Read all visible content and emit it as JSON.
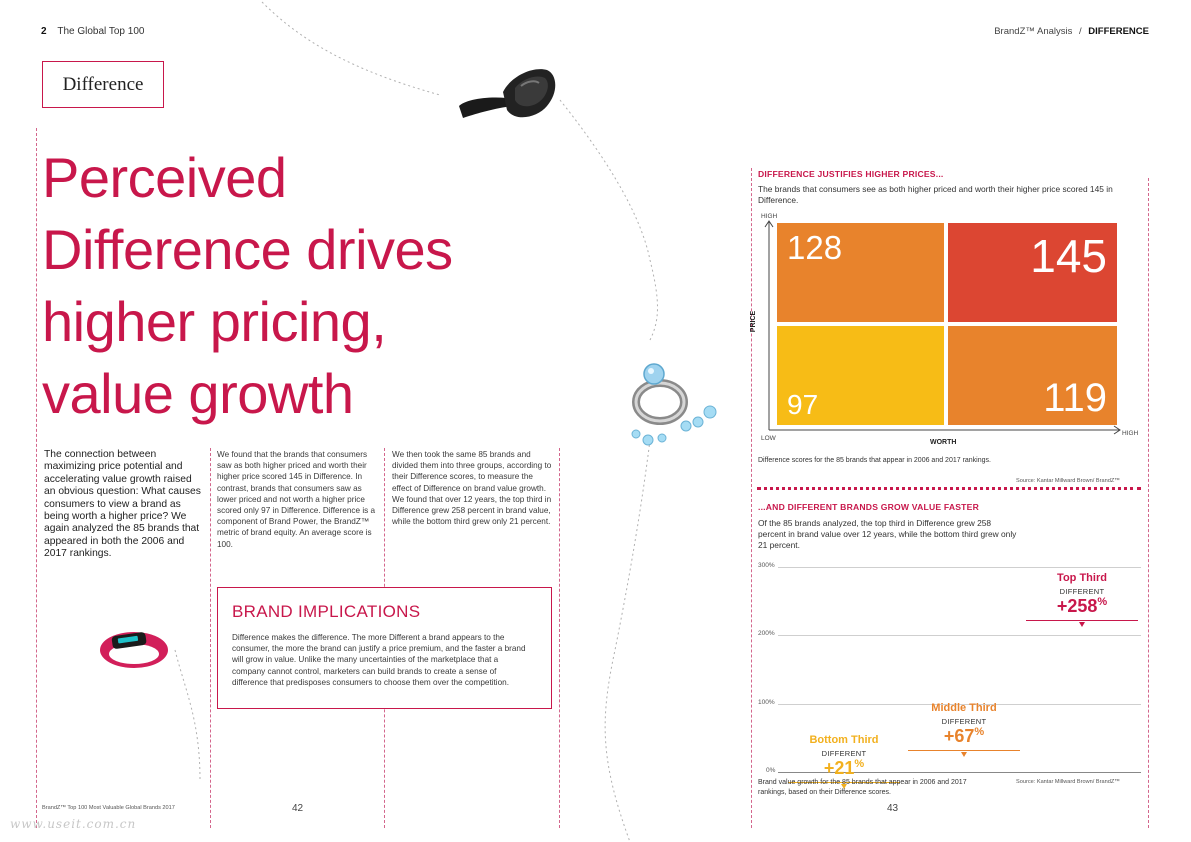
{
  "header": {
    "page_num_left": "2",
    "section_left": "The Global Top 100",
    "section_right": "BrandZ™ Analysis",
    "separator": "/",
    "section_right_bold": "DIFFERENCE"
  },
  "tag_box": {
    "label": "Difference"
  },
  "headline": {
    "line1": "Perceived",
    "line2": "Difference drives",
    "line3": "higher pricing,",
    "line4": "value growth"
  },
  "intro_text": "The connection between maximizing price potential and accelerating value growth raised an obvious question: What causes consumers to view a brand as being worth a higher price? We again analyzed the 85 brands that appeared in both the 2006 and 2017 rankings.",
  "col2_text": "We found that the brands that consumers saw as both higher priced and worth their higher price scored 145 in Difference. In contrast, brands that consumers saw as lower priced and not worth a higher price scored only 97 in Difference. Difference is a component of Brand Power, the BrandZ™ metric of brand equity. An average score is 100.",
  "col3_text": "We then took the same 85 brands and divided them into three groups, according to their Difference scores, to measure the effect of Difference on brand value growth. We found that over 12 years, the top third in Difference grew 258 percent in brand value, while the bottom third grew only 21 percent.",
  "implications": {
    "title": "BRAND IMPLICATIONS",
    "text": "Difference makes the difference. The more Different a brand appears to the consumer, the more the brand can justify a price premium, and the faster a brand will grow in value. Unlike the many uncertainties of the marketplace that a company cannot control, marketers can build brands to create a sense of difference that predisposes consumers to choose them over the competition."
  },
  "footer": {
    "left_note": "BrandZ™ Top 100 Most Valuable Global Brands 2017",
    "page_left": "42",
    "page_right": "43",
    "watermark": "www.useit.com.cn"
  },
  "chart1": {
    "title": "DIFFERENCE JUSTIFIES HIGHER PRICES...",
    "subtitle": "The brands that consumers see as both higher priced and worth their higher price scored 145 in Difference.",
    "y_axis": "PRICE",
    "x_axis": "WORTH",
    "high_y": "HIGH",
    "low": "LOW",
    "high_x": "HIGH",
    "caption": "Difference scores for the 85 brands that appear in 2006 and 2017 rankings.",
    "source": "Source: Kantar Millward Brown/ BrandZ™",
    "colors": {
      "top_left": "#e8832c",
      "top_right": "#dc4632",
      "bottom_left": "#f7bc16",
      "bottom_right": "#e8832c"
    }
  },
  "chart2": {
    "title": "...AND DIFFERENT BRANDS GROW VALUE FASTER",
    "subtitle": "Of the 85 brands analyzed, the top third in Difference grew 258 percent in brand value over 12 years, while the bottom third grew only 21 percent.",
    "caption": "Brand value growth for the 85 brands that appear in 2006 and 2017 rankings, based on their Difference scores.",
    "source": "Source: Kantar Millward Brown/ BrandZ™",
    "y_ticks": [
      "300%",
      "200%",
      "100%",
      "0%"
    ],
    "diff_label": "DIFFERENT",
    "colors": {
      "top": "#c8174b",
      "middle": "#e8832c",
      "bottom": "#f2b01e"
    }
  },
  "chart_data": [
    {
      "type": "heatmap",
      "title": "DIFFERENCE JUSTIFIES HIGHER PRICES...",
      "xlabel": "WORTH",
      "ylabel": "PRICE",
      "x_categories": [
        "LOW",
        "HIGH"
      ],
      "y_categories": [
        "LOW",
        "HIGH"
      ],
      "cells": [
        {
          "price": "HIGH",
          "worth": "LOW",
          "value": 128
        },
        {
          "price": "HIGH",
          "worth": "HIGH",
          "value": 145
        },
        {
          "price": "LOW",
          "worth": "LOW",
          "value": 97
        },
        {
          "price": "LOW",
          "worth": "HIGH",
          "value": 119
        }
      ]
    },
    {
      "type": "bar",
      "title": "...AND DIFFERENT BRANDS GROW VALUE FASTER",
      "categories": [
        "Bottom Third",
        "Middle Third",
        "Top Third"
      ],
      "values": [
        21,
        67,
        258
      ],
      "value_labels": [
        "+21%",
        "+67%",
        "+258%"
      ],
      "ylim": [
        0,
        300
      ],
      "unit": "%"
    }
  ]
}
